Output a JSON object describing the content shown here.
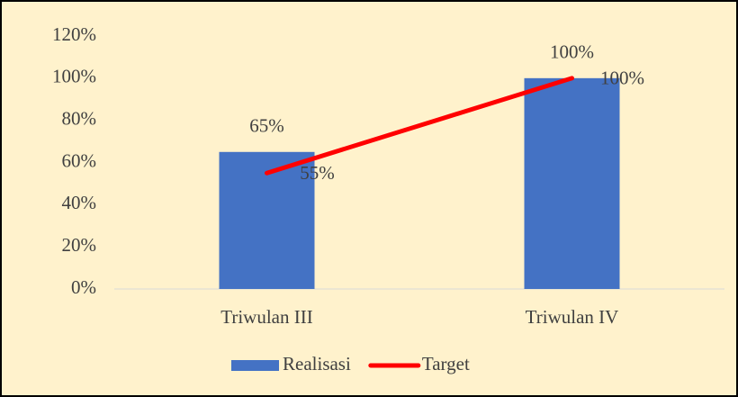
{
  "chart_data": {
    "type": "bar",
    "categories": [
      "Triwulan III",
      "Triwulan IV"
    ],
    "series": [
      {
        "name": "Realisasi",
        "type": "bar",
        "color": "#4472c4",
        "values": [
          65,
          100
        ],
        "value_labels": [
          "65%",
          "100%"
        ]
      },
      {
        "name": "Target",
        "type": "line",
        "color": "#ff0000",
        "values": [
          55,
          100
        ],
        "value_labels": [
          "55%",
          "100%"
        ]
      }
    ],
    "ylim": [
      0,
      120
    ],
    "yticks": [
      {
        "value": 0,
        "label": "0%"
      },
      {
        "value": 20,
        "label": "20%"
      },
      {
        "value": 40,
        "label": "40%"
      },
      {
        "value": 60,
        "label": "60%"
      },
      {
        "value": 80,
        "label": "80%"
      },
      {
        "value": 100,
        "label": "100%"
      },
      {
        "value": 120,
        "label": "120%"
      }
    ],
    "grid": false,
    "legend": "bottom"
  }
}
